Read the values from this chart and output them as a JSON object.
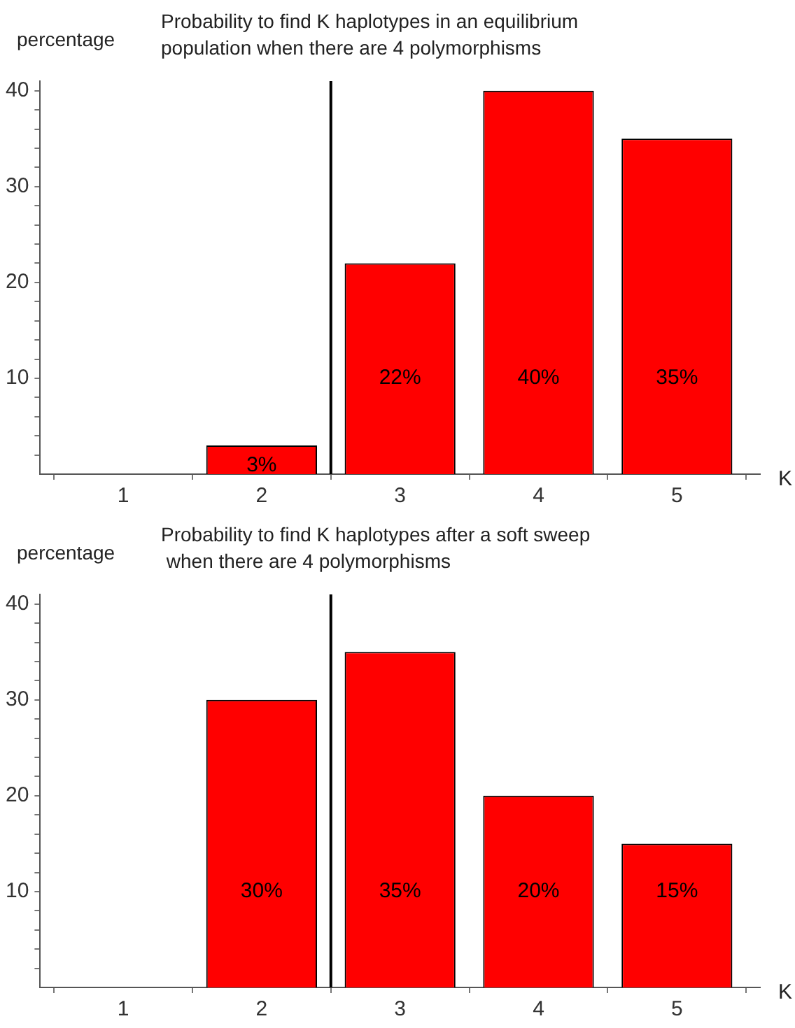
{
  "chart_data": [
    {
      "type": "bar",
      "title": "Probability to find K haplotypes in an equilibrium\npopulation when there are 4 polymorphisms",
      "xlabel": "K",
      "ylabel": "percentage",
      "x": [
        1,
        2,
        3,
        4,
        5
      ],
      "values": [
        0,
        3,
        22,
        40,
        35
      ],
      "value_labels": [
        null,
        "3%",
        "22%",
        "40%",
        "35%"
      ],
      "color": "#ff0000",
      "xlim": [
        0.4,
        5.6
      ],
      "xticks": [
        1,
        2,
        3,
        4,
        5
      ],
      "ylim": [
        0,
        41
      ],
      "yticks": [
        {
          "value": 2,
          "label": null
        },
        {
          "value": 4,
          "label": null
        },
        {
          "value": 6,
          "label": null
        },
        {
          "value": 8,
          "label": null
        },
        10,
        {
          "value": 12,
          "label": null
        },
        {
          "value": 14,
          "label": null
        },
        {
          "value": 16,
          "label": null
        },
        {
          "value": 18,
          "label": null
        },
        20,
        {
          "value": 22,
          "label": null
        },
        {
          "value": 24,
          "label": null
        },
        {
          "value": 26,
          "label": null
        },
        {
          "value": 28,
          "label": null
        },
        30,
        {
          "value": 32,
          "label": null
        },
        {
          "value": 34,
          "label": null
        },
        {
          "value": 36,
          "label": null
        },
        {
          "value": 38,
          "label": null
        },
        40
      ],
      "ref_lines": [
        {
          "axis": "x",
          "value": 2.5,
          "color": "#000000"
        }
      ],
      "grid": false,
      "legend": false
    },
    {
      "type": "bar",
      "title": "Probability to find K haplotypes after a soft sweep\n when there are 4 polymorphisms",
      "xlabel": "K",
      "ylabel": "percentage",
      "x": [
        1,
        2,
        3,
        4,
        5
      ],
      "values": [
        0,
        30,
        35,
        20,
        15
      ],
      "value_labels": [
        null,
        "30%",
        "35%",
        "20%",
        "15%"
      ],
      "color": "#ff0000",
      "xlim": [
        0.4,
        5.6
      ],
      "xticks": [
        1,
        2,
        3,
        4,
        5
      ],
      "ylim": [
        0,
        41
      ],
      "yticks": [
        {
          "value": 2,
          "label": null
        },
        {
          "value": 4,
          "label": null
        },
        {
          "value": 6,
          "label": null
        },
        {
          "value": 8,
          "label": null
        },
        10,
        {
          "value": 12,
          "label": null
        },
        {
          "value": 14,
          "label": null
        },
        {
          "value": 16,
          "label": null
        },
        {
          "value": 18,
          "label": null
        },
        20,
        {
          "value": 22,
          "label": null
        },
        {
          "value": 24,
          "label": null
        },
        {
          "value": 26,
          "label": null
        },
        {
          "value": 28,
          "label": null
        },
        30,
        {
          "value": 32,
          "label": null
        },
        {
          "value": 34,
          "label": null
        },
        {
          "value": 36,
          "label": null
        },
        {
          "value": 38,
          "label": null
        },
        40
      ],
      "ref_lines": [
        {
          "axis": "x",
          "value": 2.5,
          "color": "#000000"
        }
      ],
      "grid": false,
      "legend": false
    }
  ]
}
